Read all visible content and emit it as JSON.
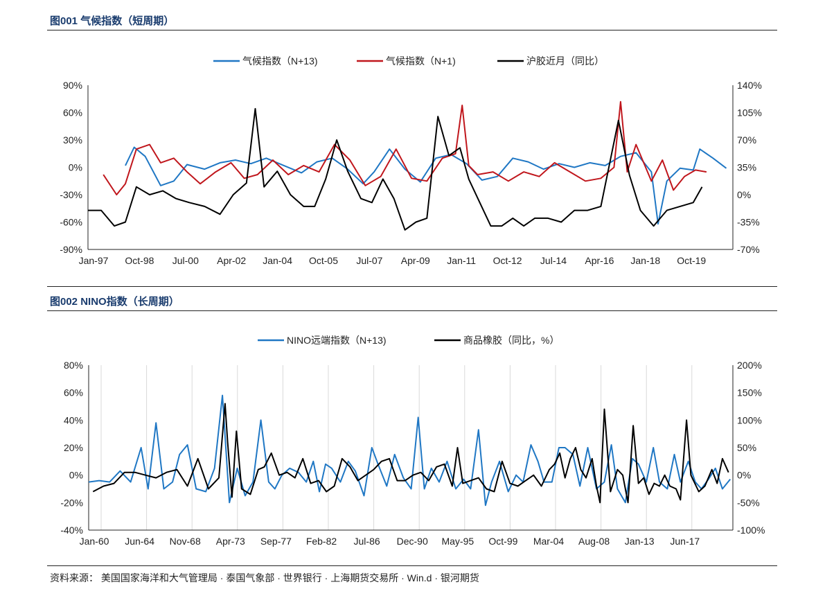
{
  "figures": [
    {
      "title": "图001 气候指数（短周期）"
    },
    {
      "title": "图002 NINO指数（长周期）"
    }
  ],
  "source": "资料来源：  美国国家海洋和大气管理局 · 泰国气象部 · 世界银行 · 上海期货交易所 · Win.d · 银河期货",
  "colors": {
    "blue": "#1f77c4",
    "red": "#c0161c",
    "black": "#000000"
  },
  "chart_data": [
    {
      "type": "line",
      "x_categories": [
        "Jan-97",
        "Oct-98",
        "Jul-00",
        "Apr-02",
        "Jan-04",
        "Oct-05",
        "Jul-07",
        "Apr-09",
        "Jan-11",
        "Oct-12",
        "Jul-14",
        "Apr-16",
        "Jan-18",
        "Oct-19"
      ],
      "x_range": [
        "1997-01",
        "2021-06"
      ],
      "y_left": {
        "min": -90,
        "max": 90,
        "ticks": [
          "90%",
          "60%",
          "30%",
          "0%",
          "-30%",
          "-60%",
          "-90%"
        ]
      },
      "y_right": {
        "min": -70,
        "max": 140,
        "ticks": [
          "140%",
          "105%",
          "70%",
          "35%",
          "0%",
          "-35%",
          "-70%"
        ]
      },
      "legend_position": "top",
      "series": [
        {
          "name": "气候指数（N+13)",
          "color": "blue",
          "axis": "left",
          "x": [
            "1998-06",
            "1998-10",
            "1999-03",
            "1999-10",
            "2000-04",
            "2000-10",
            "2001-06",
            "2002-01",
            "2002-08",
            "2003-03",
            "2003-10",
            "2004-06",
            "2005-02",
            "2005-09",
            "2006-04",
            "2006-11",
            "2007-06",
            "2007-11",
            "2008-06",
            "2009-01",
            "2009-08",
            "2010-03",
            "2010-10",
            "2011-05",
            "2011-12",
            "2012-07",
            "2013-02",
            "2013-09",
            "2014-04",
            "2014-11",
            "2015-06",
            "2016-01",
            "2016-08",
            "2017-03",
            "2017-10",
            "2018-05",
            "2018-08",
            "2018-12",
            "2019-06",
            "2019-12",
            "2020-03",
            "2020-09",
            "2021-03"
          ],
          "y": [
            2,
            22,
            12,
            -20,
            -15,
            3,
            -2,
            5,
            8,
            4,
            10,
            2,
            -6,
            6,
            10,
            -2,
            -18,
            -5,
            20,
            -2,
            -16,
            10,
            14,
            4,
            -14,
            -10,
            10,
            6,
            -2,
            4,
            0,
            5,
            2,
            12,
            16,
            -5,
            -62,
            -15,
            -1,
            -3,
            20,
            10,
            -1
          ]
        },
        {
          "name": "气候指数（N+1)",
          "color": "red",
          "axis": "left",
          "x": [
            "1997-08",
            "1998-02",
            "1998-06",
            "1998-11",
            "1999-05",
            "1999-10",
            "2000-04",
            "2000-10",
            "2001-04",
            "2001-11",
            "2002-06",
            "2002-12",
            "2003-06",
            "2004-01",
            "2004-08",
            "2005-03",
            "2005-10",
            "2006-05",
            "2006-12",
            "2007-07",
            "2008-02",
            "2008-09",
            "2009-04",
            "2009-11",
            "2010-06",
            "2010-12",
            "2011-03",
            "2011-06",
            "2011-10",
            "2012-05",
            "2012-12",
            "2013-07",
            "2014-02",
            "2014-09",
            "2015-04",
            "2015-11",
            "2016-06",
            "2016-12",
            "2017-03",
            "2017-06",
            "2017-10",
            "2018-05",
            "2018-10",
            "2019-03",
            "2019-08",
            "2020-01",
            "2020-06"
          ],
          "y": [
            -8,
            -30,
            -18,
            20,
            25,
            5,
            10,
            -5,
            -18,
            -5,
            5,
            -12,
            -8,
            8,
            -8,
            2,
            -5,
            25,
            8,
            -20,
            -10,
            20,
            -12,
            -15,
            10,
            15,
            68,
            2,
            -8,
            -5,
            -15,
            -5,
            -10,
            5,
            -5,
            -15,
            -12,
            0,
            72,
            -5,
            25,
            -15,
            8,
            -25,
            -10,
            -3,
            -5
          ]
        },
        {
          "name": "沪胶近月（同比）",
          "color": "black",
          "axis": "right",
          "x": [
            "1997-01",
            "1997-07",
            "1998-01",
            "1998-06",
            "1998-11",
            "1999-05",
            "1999-11",
            "2000-05",
            "2000-11",
            "2001-06",
            "2002-01",
            "2002-07",
            "2003-01",
            "2003-05",
            "2003-09",
            "2004-03",
            "2004-09",
            "2005-03",
            "2005-08",
            "2006-01",
            "2006-06",
            "2006-11",
            "2007-05",
            "2007-10",
            "2008-03",
            "2008-08",
            "2009-01",
            "2009-06",
            "2009-11",
            "2010-04",
            "2010-09",
            "2011-02",
            "2011-06",
            "2011-11",
            "2012-04",
            "2012-09",
            "2013-02",
            "2013-07",
            "2013-12",
            "2014-06",
            "2014-12",
            "2015-06",
            "2015-12",
            "2016-06",
            "2016-10",
            "2017-02",
            "2017-07",
            "2017-12",
            "2018-06",
            "2018-12",
            "2019-06",
            "2019-12",
            "2020-04"
          ],
          "y": [
            -20,
            -20,
            -40,
            -35,
            10,
            0,
            5,
            -5,
            -10,
            -15,
            -25,
            0,
            15,
            110,
            10,
            30,
            0,
            -15,
            -15,
            20,
            70,
            30,
            -5,
            -10,
            20,
            -5,
            -45,
            -35,
            -30,
            100,
            50,
            60,
            20,
            -10,
            -40,
            -40,
            -30,
            -40,
            -30,
            -30,
            -35,
            -20,
            -20,
            -15,
            40,
            95,
            25,
            -20,
            -40,
            -20,
            -15,
            -10,
            10
          ]
        }
      ]
    },
    {
      "type": "line",
      "x_categories": [
        "Jan-60",
        "Jun-64",
        "Nov-68",
        "Apr-73",
        "Sep-77",
        "Feb-82",
        "Jul-86",
        "Dec-90",
        "May-95",
        "Oct-99",
        "Mar-04",
        "Aug-08",
        "Jan-13",
        "Jun-17"
      ],
      "x_range": [
        "1960-01",
        "2021-06"
      ],
      "y_left": {
        "min": -40,
        "max": 80,
        "ticks": [
          "80%",
          "60%",
          "40%",
          "20%",
          "0%",
          "-20%",
          "-40%"
        ]
      },
      "y_right": {
        "min": -100,
        "max": 200,
        "ticks": [
          "200%",
          "150%",
          "100%",
          "50%",
          "0%",
          "-50%",
          "-100%"
        ]
      },
      "legend_position": "top",
      "series": [
        {
          "name": "NINO远端指数（N+13)",
          "color": "blue",
          "axis": "left",
          "x": [
            "1960-01",
            "1961-01",
            "1962-01",
            "1963-01",
            "1964-01",
            "1965-01",
            "1965-09",
            "1966-06",
            "1967-03",
            "1968-01",
            "1968-09",
            "1969-06",
            "1970-04",
            "1971-03",
            "1972-01",
            "1972-10",
            "1973-06",
            "1974-03",
            "1974-12",
            "1975-09",
            "1976-06",
            "1977-03",
            "1977-10",
            "1978-06",
            "1979-03",
            "1980-01",
            "1980-10",
            "1981-06",
            "1982-01",
            "1982-08",
            "1983-03",
            "1984-01",
            "1984-10",
            "1985-06",
            "1986-04",
            "1987-01",
            "1987-08",
            "1988-06",
            "1989-03",
            "1990-01",
            "1990-10",
            "1991-06",
            "1992-01",
            "1992-09",
            "1993-06",
            "1994-03",
            "1995-01",
            "1995-10",
            "1996-06",
            "1997-03",
            "1997-11",
            "1998-06",
            "1999-03",
            "2000-01",
            "2000-10",
            "2001-06",
            "2002-03",
            "2002-11",
            "2003-06",
            "2004-03",
            "2004-11",
            "2005-06",
            "2006-03",
            "2006-11",
            "2007-08",
            "2008-06",
            "2009-03",
            "2009-11",
            "2010-06",
            "2011-03",
            "2011-11",
            "2012-06",
            "2013-03",
            "2013-11",
            "2014-06",
            "2015-03",
            "2015-11",
            "2016-06",
            "2017-03",
            "2017-11",
            "2018-06",
            "2019-02",
            "2019-10",
            "2020-06",
            "2021-03"
          ],
          "y": [
            -5,
            -4,
            -5,
            3,
            -5,
            20,
            -10,
            38,
            -10,
            -5,
            15,
            22,
            -10,
            -12,
            5,
            58,
            -20,
            5,
            -15,
            -5,
            40,
            -5,
            -10,
            0,
            5,
            2,
            -5,
            10,
            -12,
            8,
            5,
            -5,
            10,
            3,
            -15,
            20,
            8,
            -8,
            15,
            -2,
            -10,
            42,
            -10,
            5,
            -5,
            10,
            -10,
            -3,
            -10,
            33,
            -22,
            -5,
            10,
            -12,
            0,
            -5,
            22,
            10,
            -5,
            -5,
            20,
            20,
            15,
            -8,
            20,
            -10,
            -5,
            22,
            -10,
            -20,
            12,
            8,
            -5,
            20,
            -5,
            -10,
            15,
            -5,
            10,
            -5,
            -10,
            -3,
            5,
            -10,
            -3
          ]
        },
        {
          "name": "商品橡胶（同比，%）",
          "color": "black",
          "axis": "right",
          "x": [
            "1960-06",
            "1961-06",
            "1962-06",
            "1963-06",
            "1964-06",
            "1965-06",
            "1966-06",
            "1967-06",
            "1968-06",
            "1969-06",
            "1970-06",
            "1971-06",
            "1972-06",
            "1973-01",
            "1973-04",
            "1973-09",
            "1974-02",
            "1974-08",
            "1975-06",
            "1976-03",
            "1976-10",
            "1977-06",
            "1978-03",
            "1978-12",
            "1979-09",
            "1980-06",
            "1981-03",
            "1981-12",
            "1982-09",
            "1983-06",
            "1984-03",
            "1984-12",
            "1985-09",
            "1986-06",
            "1987-03",
            "1987-12",
            "1988-09",
            "1989-06",
            "1990-03",
            "1990-12",
            "1991-09",
            "1992-06",
            "1993-03",
            "1993-12",
            "1994-09",
            "1995-03",
            "1995-09",
            "1996-06",
            "1997-03",
            "1997-12",
            "1998-09",
            "1999-06",
            "2000-03",
            "2000-12",
            "2001-09",
            "2002-06",
            "2003-03",
            "2003-12",
            "2004-06",
            "2004-12",
            "2005-06",
            "2005-12",
            "2006-06",
            "2006-12",
            "2007-06",
            "2008-01",
            "2008-06",
            "2008-10",
            "2009-03",
            "2009-10",
            "2010-06",
            "2010-12",
            "2011-06",
            "2011-12",
            "2012-06",
            "2012-12",
            "2013-06",
            "2013-12",
            "2014-06",
            "2014-12",
            "2015-06",
            "2016-01",
            "2016-06",
            "2017-01",
            "2017-06",
            "2018-03",
            "2018-10",
            "2019-06",
            "2019-12",
            "2020-06",
            "2021-01"
          ],
          "y": [
            -30,
            -20,
            -15,
            5,
            5,
            0,
            -5,
            5,
            10,
            -20,
            30,
            -25,
            -5,
            130,
            60,
            -40,
            80,
            -25,
            -35,
            10,
            15,
            40,
            0,
            5,
            -5,
            30,
            -15,
            -10,
            -30,
            -20,
            30,
            15,
            -10,
            0,
            10,
            25,
            30,
            -10,
            -10,
            0,
            5,
            -10,
            15,
            20,
            -20,
            50,
            -15,
            -10,
            -5,
            -25,
            -30,
            25,
            -15,
            -20,
            -10,
            0,
            -20,
            10,
            20,
            40,
            -5,
            30,
            50,
            10,
            -5,
            30,
            -20,
            -50,
            120,
            -30,
            10,
            0,
            -50,
            90,
            -15,
            -5,
            -35,
            -15,
            -20,
            0,
            -20,
            -25,
            -45,
            100,
            0,
            -30,
            -20,
            10,
            -15,
            30,
            5
          ]
        }
      ]
    }
  ]
}
